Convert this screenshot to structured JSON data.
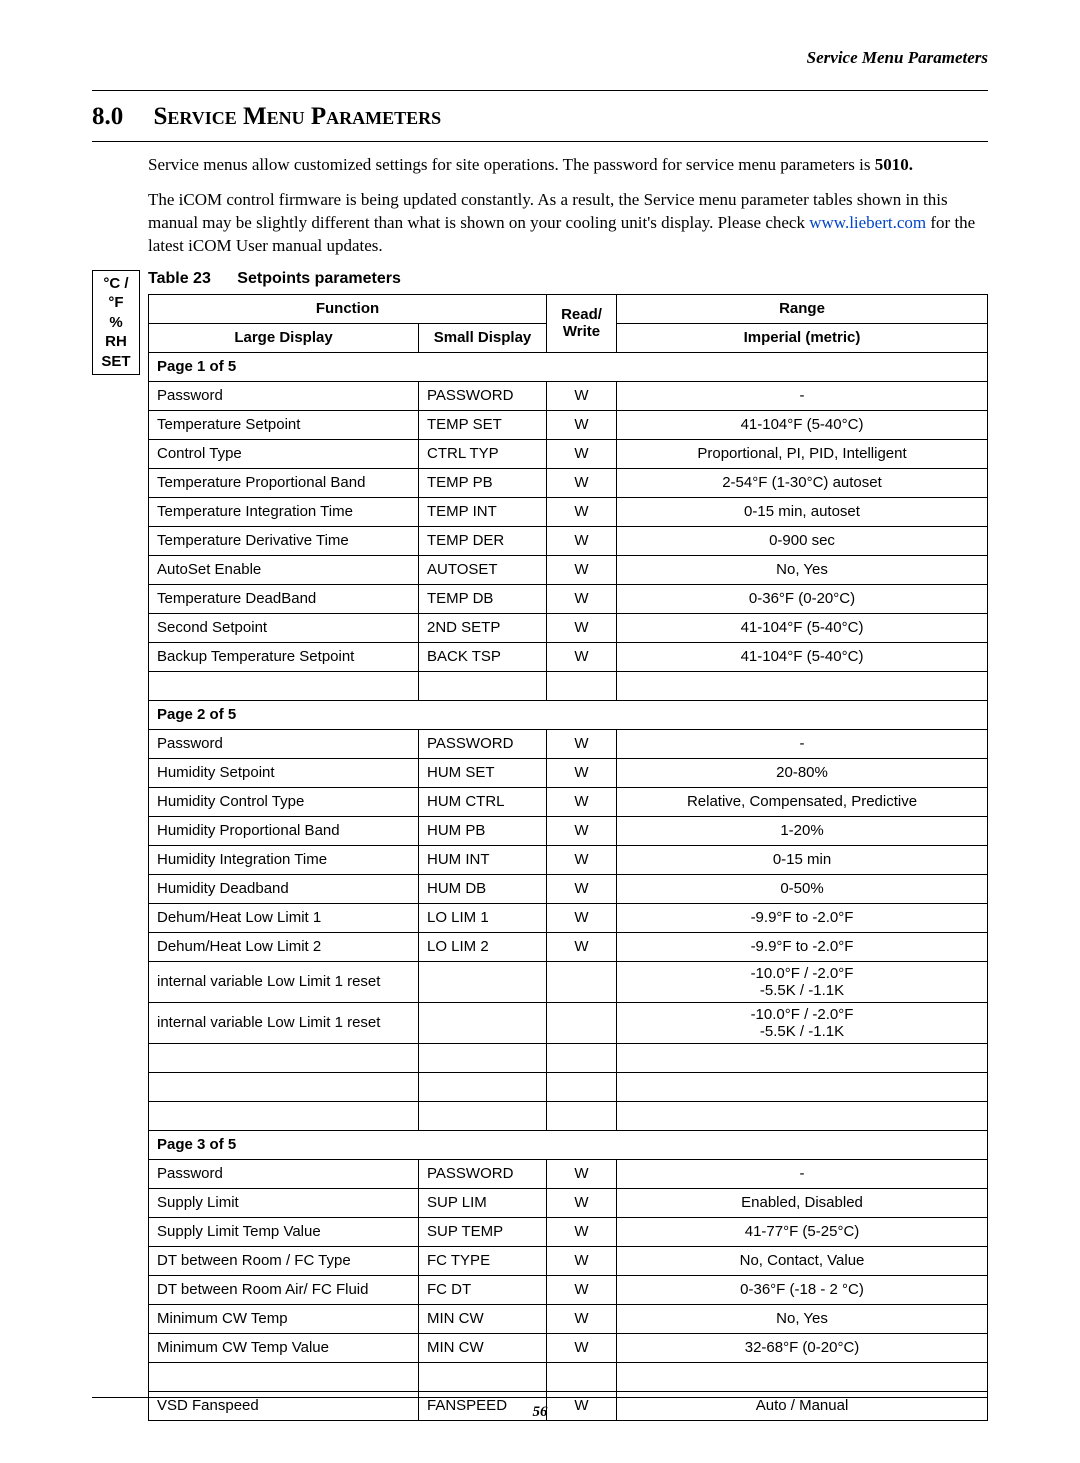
{
  "running_head": "Service Menu Parameters",
  "section_number": "8.0",
  "section_title": "Service Menu Parameters",
  "para1": "Service menus allow customized settings for site operations. The password for service menu parameters is ",
  "para1_bold": "5010.",
  "para2a": "The iCOM control firmware is being updated constantly. As a result, the Service menu parameter tables shown in this manual may be slightly different than what is shown on your cooling unit's display. Please check ",
  "para2_link": "www.liebert.com",
  "para2b": " for the latest iCOM User manual updates.",
  "sidebox": {
    "l1": "°C / °F",
    "l2": "% RH",
    "l3": "SET"
  },
  "table_label": "Table 23",
  "table_title": "Setpoints parameters",
  "headers": {
    "function": "Function",
    "large": "Large Display",
    "small": "Small Display",
    "rw": "Read/\nWrite",
    "range1": "Range",
    "range2": "Imperial (metric)"
  },
  "rows": [
    {
      "type": "page",
      "label": "Page 1 of 5"
    },
    {
      "type": "data",
      "large": "Password",
      "small": "PASSWORD",
      "rw": "W",
      "range": "-"
    },
    {
      "type": "data",
      "large": "Temperature Setpoint",
      "small": "TEMP SET",
      "rw": "W",
      "range": "41-104°F (5-40°C)"
    },
    {
      "type": "data",
      "large": "Control Type",
      "small": "CTRL TYP",
      "rw": "W",
      "range": "Proportional, PI, PID, Intelligent"
    },
    {
      "type": "data",
      "large": "Temperature Proportional Band",
      "small": "TEMP PB",
      "rw": "W",
      "range": "2-54°F (1-30°C) autoset"
    },
    {
      "type": "data",
      "large": "Temperature Integration Time",
      "small": "TEMP INT",
      "rw": "W",
      "range": "0-15 min, autoset"
    },
    {
      "type": "data",
      "large": "Temperature Derivative Time",
      "small": "TEMP DER",
      "rw": "W",
      "range": "0-900 sec"
    },
    {
      "type": "data",
      "large": "AutoSet Enable",
      "small": "AUTOSET",
      "rw": "W",
      "range": "No, Yes"
    },
    {
      "type": "data",
      "large": "Temperature DeadBand",
      "small": "TEMP DB",
      "rw": "W",
      "range": "0-36°F (0-20°C)"
    },
    {
      "type": "data",
      "large": "Second Setpoint",
      "small": "2ND SETP",
      "rw": "W",
      "range": "41-104°F (5-40°C)"
    },
    {
      "type": "data",
      "large": "Backup Temperature Setpoint",
      "small": "BACK TSP",
      "rw": "W",
      "range": "41-104°F (5-40°C)"
    },
    {
      "type": "blank"
    },
    {
      "type": "page",
      "label": "Page 2 of 5"
    },
    {
      "type": "data",
      "large": "Password",
      "small": "PASSWORD",
      "rw": "W",
      "range": "-"
    },
    {
      "type": "data",
      "large": "Humidity Setpoint",
      "small": "HUM SET",
      "rw": "W",
      "range": "20-80%"
    },
    {
      "type": "data",
      "large": "Humidity Control Type",
      "small": "HUM CTRL",
      "rw": "W",
      "range": "Relative, Compensated, Predictive"
    },
    {
      "type": "data",
      "large": "Humidity Proportional Band",
      "small": "HUM PB",
      "rw": "W",
      "range": "1-20%"
    },
    {
      "type": "data",
      "large": "Humidity Integration Time",
      "small": "HUM INT",
      "rw": "W",
      "range": "0-15 min"
    },
    {
      "type": "data",
      "large": "Humidity Deadband",
      "small": "HUM DB",
      "rw": "W",
      "range": "0-50%"
    },
    {
      "type": "data",
      "large": "Dehum/Heat Low Limit 1",
      "small": "LO LIM 1",
      "rw": "W",
      "range": "-9.9°F to -2.0°F"
    },
    {
      "type": "data",
      "large": "Dehum/Heat Low Limit 2",
      "small": "LO LIM 2",
      "rw": "W",
      "range": "-9.9°F to -2.0°F"
    },
    {
      "type": "data",
      "large": "internal variable Low Limit 1 reset",
      "small": "",
      "rw": "",
      "range": "-10.0°F / -2.0°F\n-5.5K / -1.1K"
    },
    {
      "type": "data",
      "large": "internal variable Low Limit 1 reset",
      "small": "",
      "rw": "",
      "range": "-10.0°F / -2.0°F\n-5.5K / -1.1K"
    },
    {
      "type": "blank"
    },
    {
      "type": "blank"
    },
    {
      "type": "blank"
    },
    {
      "type": "page",
      "label": "Page 3 of 5"
    },
    {
      "type": "data",
      "large": "Password",
      "small": "PASSWORD",
      "rw": "W",
      "range": "-"
    },
    {
      "type": "data",
      "large": "Supply Limit",
      "small": "SUP LIM",
      "rw": "W",
      "range": "Enabled, Disabled"
    },
    {
      "type": "data",
      "large": "Supply Limit Temp Value",
      "small": "SUP TEMP",
      "rw": "W",
      "range": "41-77°F (5-25°C)"
    },
    {
      "type": "data",
      "large": "DT between Room / FC Type",
      "small": "FC TYPE",
      "rw": "W",
      "range": "No, Contact, Value"
    },
    {
      "type": "data",
      "large": "DT between Room Air/ FC Fluid",
      "small": "FC DT",
      "rw": "W",
      "range": "0-36°F (-18 - 2 °C)"
    },
    {
      "type": "data",
      "large": "Minimum CW Temp",
      "small": "MIN CW",
      "rw": "W",
      "range": "No, Yes"
    },
    {
      "type": "data",
      "large": "Minimum CW Temp Value",
      "small": "MIN CW",
      "rw": "W",
      "range": "32-68°F (0-20°C)"
    },
    {
      "type": "blank"
    },
    {
      "type": "data",
      "large": "VSD Fanspeed",
      "small": "FANSPEED",
      "rw": "W",
      "range": "Auto / Manual"
    }
  ],
  "page_number": "56"
}
